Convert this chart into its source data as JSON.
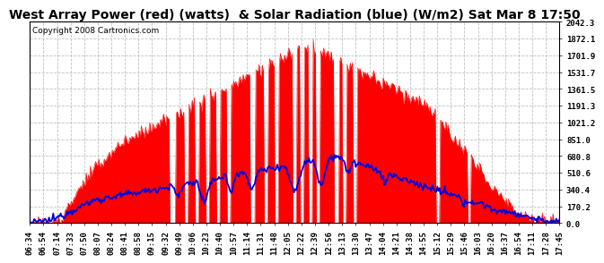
{
  "title": "West Array Power (red) (watts)  & Solar Radiation (blue) (W/m2) Sat Mar 8 17:50",
  "copyright": "Copyright 2008 Cartronics.com",
  "background_color": "#ffffff",
  "plot_bg_color": "#ffffff",
  "grid_color": "#bbbbbb",
  "yticks": [
    0.0,
    170.2,
    340.4,
    510.6,
    680.8,
    851.0,
    1021.2,
    1191.3,
    1361.5,
    1531.7,
    1701.9,
    1872.1,
    2042.3
  ],
  "ymax": 2042.3,
  "ymin": 0.0,
  "red_color": "#ff0000",
  "blue_color": "#0000dd",
  "title_fontsize": 10,
  "tick_fontsize": 6.5,
  "copyright_fontsize": 6.5,
  "time_labels": [
    "06:34",
    "06:54",
    "07:14",
    "07:33",
    "07:50",
    "08:07",
    "08:24",
    "08:41",
    "08:58",
    "09:15",
    "09:32",
    "09:49",
    "10:06",
    "10:23",
    "10:40",
    "10:57",
    "11:14",
    "11:31",
    "11:48",
    "12:05",
    "12:22",
    "12:39",
    "12:56",
    "13:13",
    "13:30",
    "13:47",
    "14:04",
    "14:21",
    "14:38",
    "14:55",
    "15:12",
    "15:29",
    "15:46",
    "16:03",
    "16:20",
    "16:37",
    "16:54",
    "17:11",
    "17:28",
    "17:45"
  ]
}
